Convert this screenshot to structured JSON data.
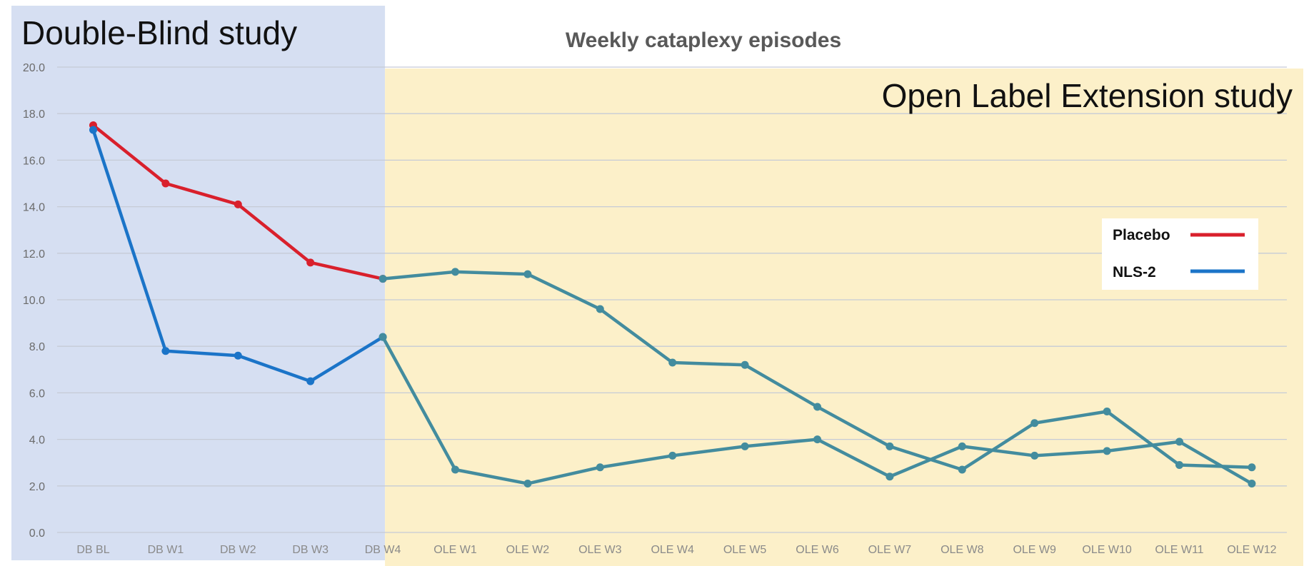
{
  "chart_data": {
    "type": "line",
    "title": "Weekly cataplexy episodes",
    "xlabel": "",
    "ylabel": "",
    "ylim": [
      0,
      20
    ],
    "ytick_step": 2,
    "y_tick_labels": [
      "0.0",
      "2.0",
      "4.0",
      "6.0",
      "8.0",
      "10.0",
      "12.0",
      "14.0",
      "16.0",
      "18.0",
      "20.0"
    ],
    "grid": true,
    "categories": [
      "DB BL",
      "DB W1",
      "DB W2",
      "DB W3",
      "DB W4",
      "OLE W1",
      "OLE W2",
      "OLE W3",
      "OLE W4",
      "OLE W5",
      "OLE W6",
      "OLE W7",
      "OLE W8",
      "OLE W9",
      "OLE W10",
      "OLE W11",
      "OLE W12"
    ],
    "regions": [
      {
        "label": "Double-Blind study",
        "from": "DB BL",
        "to": "DB W4",
        "color": "#d6dff2"
      },
      {
        "label": "Open Label Extension study",
        "from": "DB W4",
        "to": "OLE W12",
        "color": "#fcf0c9"
      }
    ],
    "legend_position": "right",
    "series": [
      {
        "name": "Placebo",
        "color": "#d9202c",
        "values": [
          17.5,
          15.0,
          14.1,
          11.6,
          10.9,
          null,
          null,
          null,
          null,
          null,
          null,
          null,
          null,
          null,
          null,
          null,
          null
        ]
      },
      {
        "name": "NLS-2",
        "color": "#1b74c8",
        "values": [
          17.3,
          7.8,
          7.6,
          6.5,
          8.4,
          null,
          null,
          null,
          null,
          null,
          null,
          null,
          null,
          null,
          null,
          null,
          null
        ]
      },
      {
        "name": "",
        "color": "#438c9e",
        "values": [
          null,
          null,
          null,
          null,
          10.9,
          11.2,
          11.1,
          9.6,
          7.3,
          7.2,
          5.4,
          3.7,
          2.7,
          4.7,
          5.2,
          2.9,
          2.8
        ]
      },
      {
        "name": "",
        "color": "#438c9e",
        "values": [
          null,
          null,
          null,
          null,
          8.4,
          2.7,
          2.1,
          2.8,
          3.3,
          3.7,
          4.0,
          2.4,
          3.7,
          3.3,
          3.5,
          3.9,
          2.1
        ]
      }
    ]
  }
}
